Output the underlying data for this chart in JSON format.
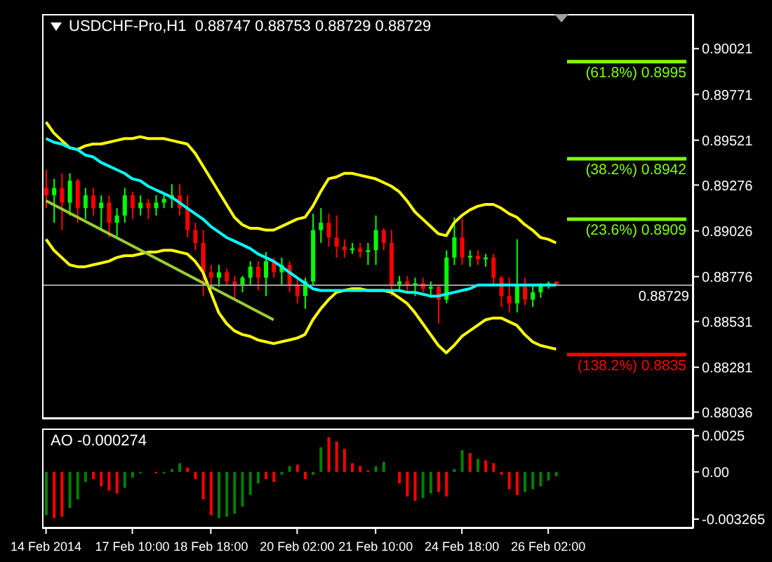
{
  "chart_data": [
    {
      "type": "candlestick",
      "title": "USDCHF-Pro,H1  0.88747 0.88753 0.88729 0.88729",
      "tick_labels": "y",
      "categories": [
        null,
        null,
        null,
        null,
        null,
        null,
        null,
        null,
        null,
        null,
        null,
        null,
        null,
        null,
        null,
        null,
        null,
        null,
        null,
        null,
        null,
        null,
        null,
        null,
        null,
        null,
        null,
        null,
        null,
        null,
        null,
        null,
        null,
        null,
        null,
        null,
        null,
        null,
        null,
        null,
        null,
        null,
        null,
        null,
        null,
        null,
        null,
        null,
        null,
        null,
        null,
        null,
        null,
        null,
        null,
        null,
        null,
        null,
        null,
        null,
        null,
        null,
        null,
        null,
        null,
        null,
        null,
        null,
        null,
        null,
        null,
        null,
        null,
        null,
        null,
        null,
        null,
        null,
        null,
        null,
        null,
        null,
        null
      ],
      "ohlc": [
        [
          0.8926,
          0.8936,
          0.8915,
          0.8922
        ],
        [
          0.8922,
          0.8931,
          0.8907,
          0.8926
        ],
        [
          0.8926,
          0.8934,
          0.8903,
          0.8918
        ],
        [
          0.8918,
          0.8934,
          0.8911,
          0.893
        ],
        [
          0.893,
          0.8931,
          0.8907,
          0.8915
        ],
        [
          0.8915,
          0.8926,
          0.8909,
          0.8922
        ],
        [
          0.8922,
          0.8926,
          0.8911,
          0.8915
        ],
        [
          0.8915,
          0.8922,
          0.8903,
          0.8918
        ],
        [
          0.8918,
          0.8922,
          0.8899,
          0.8907
        ],
        [
          0.8907,
          0.8915,
          0.8899,
          0.8911
        ],
        [
          0.8911,
          0.8926,
          0.8907,
          0.8922
        ],
        [
          0.8922,
          0.8924,
          0.8909,
          0.8915
        ],
        [
          0.8915,
          0.8922,
          0.8911,
          0.8918
        ],
        [
          0.8918,
          0.892,
          0.8909,
          0.8915
        ],
        [
          0.8915,
          0.8922,
          0.8911,
          0.8918
        ],
        [
          0.8918,
          0.8922,
          0.8915,
          0.892
        ],
        [
          0.892,
          0.8928,
          0.8915,
          0.8922
        ],
        [
          0.8922,
          0.8928,
          0.8911,
          0.8915
        ],
        [
          0.8915,
          0.8922,
          0.8899,
          0.8903
        ],
        [
          0.8903,
          0.8907,
          0.8892,
          0.8896
        ],
        [
          0.8896,
          0.8903,
          0.8867,
          0.888
        ],
        [
          0.888,
          0.8884,
          0.8873,
          0.8877
        ],
        [
          0.8877,
          0.8884,
          0.8872,
          0.888
        ],
        [
          0.888,
          0.8882,
          0.8873,
          0.8875
        ],
        [
          0.8875,
          0.8878,
          0.8866,
          0.8873
        ],
        [
          0.8873,
          0.8878,
          0.8869,
          0.8877
        ],
        [
          0.8877,
          0.8886,
          0.8873,
          0.8883
        ],
        [
          0.8883,
          0.8886,
          0.887,
          0.8877
        ],
        [
          0.8877,
          0.8891,
          0.8867,
          0.8886
        ],
        [
          0.8886,
          0.8888,
          0.8877,
          0.888
        ],
        [
          0.888,
          0.8888,
          0.8873,
          0.8884
        ],
        [
          0.8884,
          0.8886,
          0.8869,
          0.8873
        ],
        [
          0.8873,
          0.8877,
          0.8863,
          0.8867
        ],
        [
          0.8867,
          0.8877,
          0.886,
          0.8875
        ],
        [
          0.8875,
          0.8912,
          0.8873,
          0.8903
        ],
        [
          0.8903,
          0.8915,
          0.8896,
          0.8907
        ],
        [
          0.8907,
          0.8912,
          0.8894,
          0.8899
        ],
        [
          0.8899,
          0.8911,
          0.8888,
          0.8894
        ],
        [
          0.8894,
          0.8898,
          0.8888,
          0.8892
        ],
        [
          0.8892,
          0.8896,
          0.889,
          0.8893
        ],
        [
          0.8893,
          0.8896,
          0.8888,
          0.8891
        ],
        [
          0.8891,
          0.8896,
          0.8884,
          0.8892
        ],
        [
          0.8892,
          0.8911,
          0.8884,
          0.8903
        ],
        [
          0.8903,
          0.8904,
          0.8892,
          0.8896
        ],
        [
          0.8896,
          0.8903,
          0.8867,
          0.8873
        ],
        [
          0.8873,
          0.8878,
          0.8869,
          0.8875
        ],
        [
          0.8875,
          0.8878,
          0.8869,
          0.8873
        ],
        [
          0.8873,
          0.8877,
          0.8867,
          0.8874
        ],
        [
          0.8874,
          0.8877,
          0.8869,
          0.8871
        ],
        [
          0.8871,
          0.8875,
          0.8866,
          0.8872
        ],
        [
          0.8872,
          0.8873,
          0.8852,
          0.8865
        ],
        [
          0.8865,
          0.8892,
          0.8863,
          0.8888
        ],
        [
          0.8888,
          0.891,
          0.8884,
          0.8899
        ],
        [
          0.8899,
          0.8909,
          0.8884,
          0.8888
        ],
        [
          0.8888,
          0.8892,
          0.8883,
          0.8889
        ],
        [
          0.8889,
          0.8892,
          0.8884,
          0.8887
        ],
        [
          0.8887,
          0.889,
          0.8883,
          0.8888
        ],
        [
          0.8888,
          0.889,
          0.8873,
          0.8877
        ],
        [
          0.8877,
          0.8878,
          0.8861,
          0.8867
        ],
        [
          0.8867,
          0.8877,
          0.8858,
          0.8863
        ],
        [
          0.8863,
          0.8898,
          0.8858,
          0.8873
        ],
        [
          0.8873,
          0.8877,
          0.8862,
          0.8865
        ],
        [
          0.8865,
          0.8873,
          0.8861,
          0.8869
        ],
        [
          0.8869,
          0.8874,
          0.8866,
          0.8873
        ],
        [
          0.8873,
          0.8875,
          0.8871,
          0.8874
        ],
        [
          0.8875,
          0.8875,
          0.8873,
          0.8873
        ],
        null,
        null,
        null,
        null,
        null,
        null,
        null,
        null,
        null,
        null,
        null,
        null,
        null,
        null,
        null,
        null,
        null
      ],
      "colors": [
        "#ff0000",
        "#00ff00",
        "#ff0000",
        "#00ff00",
        "#ff0000",
        "#00ff00",
        "#ff0000",
        "#00ff00",
        "#ff0000",
        "#00ff00",
        "#00ff00",
        "#ff0000",
        "#00ff00",
        "#ff0000",
        "#00ff00",
        "#00ff00",
        "#00ff00",
        "#ff0000",
        "#ff0000",
        "#ff0000",
        "#ff0000",
        "#ff0000",
        "#00ff00",
        "#ff0000",
        "#ff0000",
        "#00ff00",
        "#00ff00",
        "#ff0000",
        "#00ff00",
        "#ff0000",
        "#00ff00",
        "#ff0000",
        "#ff0000",
        "#00ff00",
        "#00ff00",
        "#00ff00",
        "#ff0000",
        "#ff0000",
        "#ff0000",
        "#00ff00",
        "#ff0000",
        "#00ff00",
        "#00ff00",
        "#ff0000",
        "#ff0000",
        "#00ff00",
        "#ff0000",
        "#00ff00",
        "#ff0000",
        "#00ff00",
        "#ff0000",
        "#00ff00",
        "#00ff00",
        "#ff0000",
        "#00ff00",
        "#ff0000",
        "#00ff00",
        "#ff0000",
        "#ff0000",
        "#ff0000",
        "#00ff00",
        "#ff0000",
        "#00ff00",
        "#00ff00",
        "#00ff00",
        "#ff0000",
        null,
        null,
        null,
        null,
        null,
        null,
        null,
        null,
        null,
        null,
        null,
        null,
        null,
        null,
        null,
        null,
        null
      ],
      "series": [
        {
          "type": "line",
          "color": "#ffff00",
          "values": [
            0.8962,
            0.8956,
            0.8952,
            0.8948,
            0.8947,
            0.8949,
            0.895,
            0.895,
            0.8951,
            0.8952,
            0.8953,
            0.8953,
            0.8954,
            0.8953,
            0.8953,
            0.8953,
            0.8952,
            0.8951,
            0.895,
            0.8945,
            0.8938,
            0.8931,
            0.8924,
            0.8917,
            0.891,
            0.8906,
            0.8904,
            0.8904,
            0.8903,
            0.8903,
            0.8905,
            0.8907,
            0.8909,
            0.891,
            0.8916,
            0.8924,
            0.8931,
            0.8932,
            0.8934,
            0.8934,
            0.8933,
            0.8932,
            0.8931,
            0.8929,
            0.8927,
            0.8924,
            0.8919,
            0.8913,
            0.8909,
            0.8905,
            0.8901,
            0.89,
            0.8907,
            0.8911,
            0.8914,
            0.8916,
            0.8917,
            0.8917,
            0.8915,
            0.8912,
            0.891,
            0.8906,
            0.8903,
            0.8899,
            0.8898,
            0.8896,
            null,
            null,
            null,
            null,
            null,
            null,
            null,
            null,
            null,
            null,
            null,
            null,
            null,
            null,
            null,
            null,
            null
          ]
        },
        {
          "type": "line",
          "color": "#ffff00",
          "values": [
            0.8898,
            0.8892,
            0.8888,
            0.8884,
            0.8883,
            0.8883,
            0.8884,
            0.8885,
            0.8886,
            0.8888,
            0.8889,
            0.8889,
            0.889,
            0.8891,
            0.8891,
            0.8892,
            0.8892,
            0.8891,
            0.889,
            0.8886,
            0.888,
            0.8869,
            0.8858,
            0.8852,
            0.8848,
            0.8846,
            0.8845,
            0.8843,
            0.8842,
            0.8841,
            0.8842,
            0.8843,
            0.8844,
            0.8846,
            0.8854,
            0.886,
            0.8865,
            0.8869,
            0.887,
            0.8871,
            0.8871,
            0.887,
            0.887,
            0.887,
            0.8869,
            0.8866,
            0.8863,
            0.8858,
            0.8852,
            0.8846,
            0.884,
            0.8836,
            0.884,
            0.8845,
            0.8848,
            0.8851,
            0.8854,
            0.8855,
            0.8855,
            0.8853,
            0.8851,
            0.8846,
            0.8842,
            0.884,
            0.8839,
            0.8838,
            null,
            null,
            null,
            null,
            null,
            null,
            null,
            null,
            null,
            null,
            null,
            null,
            null,
            null,
            null,
            null,
            null
          ]
        },
        {
          "type": "line",
          "color": "#00ffff",
          "values": [
            0.8953,
            0.8951,
            0.895,
            0.8948,
            0.8947,
            0.8944,
            0.8943,
            0.894,
            0.8938,
            0.8936,
            0.8934,
            0.8931,
            0.893,
            0.8927,
            0.8925,
            0.8923,
            0.8921,
            0.8918,
            0.8915,
            0.8912,
            0.8909,
            0.8905,
            0.8902,
            0.8899,
            0.8897,
            0.8895,
            0.8893,
            0.889,
            0.8888,
            0.8886,
            0.8883,
            0.888,
            0.8877,
            0.8874,
            0.8871,
            0.887,
            0.887,
            0.887,
            0.887,
            0.887,
            0.887,
            0.887,
            0.887,
            0.887,
            0.887,
            0.887,
            0.8869,
            0.8869,
            0.8868,
            0.8867,
            0.8867,
            0.8868,
            0.8869,
            0.887,
            0.8871,
            0.8873,
            0.8873,
            0.8873,
            0.8873,
            0.8873,
            0.8873,
            0.8873,
            0.8873,
            0.8873,
            0.8873,
            0.8873,
            null,
            null,
            null,
            null,
            null,
            null,
            null,
            null,
            null,
            null,
            null,
            null,
            null,
            null,
            null,
            null,
            null
          ]
        },
        {
          "type": "line",
          "color": "#9acd32",
          "values": [
            0.8919,
            null,
            null,
            null,
            null,
            null,
            null,
            null,
            null,
            null,
            null,
            null,
            null,
            null,
            null,
            null,
            null,
            null,
            null,
            null,
            null,
            null,
            null,
            null,
            null,
            null,
            null,
            null,
            null,
            0.8854,
            null,
            null,
            null,
            null,
            null,
            null,
            null,
            null,
            null,
            null,
            null,
            null,
            null,
            null,
            null,
            null,
            null,
            null,
            null,
            null,
            null,
            null,
            null,
            null,
            null,
            null,
            null,
            null,
            null,
            null,
            null,
            null,
            null,
            null,
            null,
            null,
            null,
            null,
            null,
            null,
            null,
            null,
            null,
            null,
            null,
            null,
            null,
            null,
            null,
            null,
            null,
            null,
            null
          ]
        }
      ],
      "ylim": [
        0.88,
        0.9021
      ],
      "yticks": [
        0.88036,
        0.88281,
        0.88531,
        0.88776,
        0.89026,
        0.89276,
        0.89521,
        0.89771,
        0.90021
      ],
      "ref_lines": [
        {
          "axis": "y",
          "value": 0.8995,
          "label": "(61.8%) 0.8995",
          "color": "#80ff00"
        },
        {
          "axis": "y",
          "value": 0.8942,
          "label": "(38.2%) 0.8942",
          "color": "#80ff00"
        },
        {
          "axis": "y",
          "value": 0.8909,
          "label": "(23.6%) 0.8909",
          "color": "#80ff00"
        },
        {
          "axis": "y",
          "value": 0.8835,
          "label": "(138.2%) 0.8835",
          "color": "#ff0000"
        },
        {
          "axis": "y",
          "value": 0.88729,
          "label": "0.88729",
          "color": "#a0a0a0",
          "line_style": "solid"
        }
      ]
    },
    {
      "type": "bar",
      "title": "AO -0.000274",
      "categories": [
        "14 Feb 2014",
        null,
        null,
        null,
        null,
        null,
        null,
        null,
        null,
        null,
        null,
        "17 Feb 10:00",
        null,
        null,
        null,
        null,
        null,
        null,
        null,
        null,
        null,
        "18 Feb 18:00",
        null,
        null,
        null,
        null,
        null,
        null,
        null,
        null,
        null,
        null,
        "20 Feb 02:00",
        null,
        null,
        null,
        null,
        null,
        null,
        null,
        null,
        null,
        "21 Feb 10:00",
        null,
        null,
        null,
        null,
        null,
        null,
        null,
        null,
        null,
        null,
        "24 Feb 18:00",
        null,
        null,
        null,
        null,
        null,
        null,
        null,
        null,
        null,
        null,
        "26 Feb 02:00",
        null,
        null,
        null,
        null,
        null,
        null,
        null,
        null,
        null,
        null,
        null,
        null,
        null,
        null,
        null,
        null,
        null,
        null
      ],
      "values": [
        -0.003,
        -0.0032,
        -0.0031,
        -0.0025,
        -0.0019,
        -0.0007,
        -0.0005,
        -0.001,
        -0.0013,
        -0.0015,
        -0.0011,
        -0.0004,
        -0.0001,
        0.0,
        -0.0001,
        -0.0001,
        0.0002,
        0.0006,
        0.0003,
        -0.0005,
        -0.0019,
        -0.003,
        -0.0032,
        -0.0031,
        -0.0029,
        -0.0024,
        -0.0016,
        -0.0008,
        -0.0005,
        -0.0007,
        -0.0002,
        0.0004,
        0.0005,
        -0.0005,
        -0.0002,
        0.0017,
        0.0024,
        0.0021,
        0.0016,
        0.0006,
        0.0004,
        0.0001,
        0.0004,
        0.0007,
        0.0,
        -0.0008,
        -0.0017,
        -0.002,
        -0.0018,
        -0.0015,
        -0.0014,
        -0.0017,
        0.0002,
        0.0015,
        0.0013,
        0.0009,
        0.0008,
        0.0006,
        -0.0002,
        -0.0012,
        -0.0016,
        -0.0014,
        -0.0012,
        -0.001,
        -0.0006,
        -0.0003,
        null,
        null,
        null,
        null,
        null,
        null,
        null,
        null,
        null,
        null,
        null,
        null,
        null,
        null,
        null,
        null,
        null
      ],
      "colors": [
        "#008000",
        "#ff0000",
        "#ff0000",
        "#008000",
        "#008000",
        "#008000",
        "#ff0000",
        "#ff0000",
        "#ff0000",
        "#ff0000",
        "#008000",
        "#008000",
        "#008000",
        "#ff0000",
        "#ff0000",
        "#008000",
        "#008000",
        "#008000",
        "#ff0000",
        "#ff0000",
        "#ff0000",
        "#ff0000",
        "#008000",
        "#008000",
        "#008000",
        "#008000",
        "#008000",
        "#008000",
        "#ff0000",
        "#ff0000",
        "#008000",
        "#008000",
        "#ff0000",
        "#ff0000",
        "#008000",
        "#008000",
        "#ff0000",
        "#ff0000",
        "#ff0000",
        "#ff0000",
        "#ff0000",
        "#ff0000",
        "#008000",
        "#008000",
        "#ff0000",
        "#ff0000",
        "#ff0000",
        "#ff0000",
        "#008000",
        "#008000",
        "#ff0000",
        "#ff0000",
        "#008000",
        "#008000",
        "#ff0000",
        "#008000",
        "#ff0000",
        "#ff0000",
        "#ff0000",
        "#ff0000",
        "#ff0000",
        "#008000",
        "#008000",
        "#008000",
        "#008000",
        "#008000",
        null,
        null,
        null,
        null,
        null,
        null,
        null,
        null,
        null,
        null,
        null,
        null,
        null,
        null,
        null,
        null,
        null
      ],
      "ylim": [
        -0.0039,
        0.003
      ],
      "yticks": [
        0.0025,
        {
          "value": 0,
          "label": "0.00"
        },
        -0.003265
      ]
    }
  ]
}
